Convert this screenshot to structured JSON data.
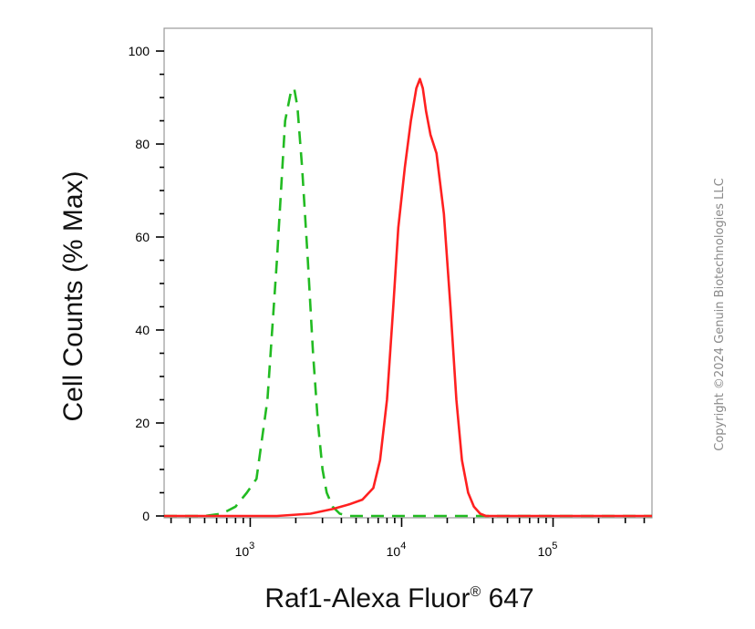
{
  "chart_data": {
    "type": "line",
    "x_scale": "log",
    "xlim": [
      270,
      450000
    ],
    "ylim": [
      0,
      105
    ],
    "ylabel": "Cell Counts (% Max)",
    "xlabel": "Raf1-Alexa Fluor",
    "xlabel_superscript": "®",
    "xlabel_suffix": " 647",
    "yticks": [
      0,
      20,
      40,
      60,
      80,
      100
    ],
    "yticks_labels": [
      "0",
      "20",
      "40",
      "60",
      "80",
      "100"
    ],
    "xticks": [
      {
        "value": 1000,
        "base": "10",
        "exp": "3"
      },
      {
        "value": 10000,
        "base": "10",
        "exp": "4"
      },
      {
        "value": 100000,
        "base": "10",
        "exp": "5"
      }
    ],
    "grid": false,
    "series": [
      {
        "color": "#22bb22",
        "style": "dashed",
        "x": [
          270,
          500,
          650,
          800,
          950,
          1100,
          1300,
          1500,
          1700,
          1850,
          1950,
          2050,
          2200,
          2400,
          2600,
          2800,
          3000,
          3200,
          3500,
          3900,
          4500,
          6000,
          10000,
          50000,
          450000
        ],
        "y": [
          0,
          0,
          0.5,
          2,
          5,
          8,
          25,
          55,
          85,
          91,
          92,
          88,
          75,
          55,
          35,
          20,
          10,
          5,
          2,
          0.5,
          0,
          0,
          0,
          0,
          0
        ]
      },
      {
        "color": "#ff2020",
        "style": "solid",
        "x": [
          270,
          1500,
          2500,
          3500,
          4500,
          5500,
          6500,
          7200,
          8000,
          8800,
          9500,
          10500,
          11500,
          12500,
          13200,
          13800,
          14500,
          15500,
          17000,
          19000,
          21000,
          23000,
          25000,
          27500,
          30000,
          33000,
          36000,
          45000,
          100000,
          450000
        ],
        "y": [
          0,
          0,
          0.5,
          1.5,
          2.5,
          3.5,
          6,
          12,
          25,
          45,
          62,
          75,
          85,
          92,
          94,
          92,
          87,
          82,
          78,
          65,
          45,
          25,
          12,
          5,
          2,
          0.5,
          0,
          0,
          0,
          0
        ]
      }
    ]
  },
  "watermark": "Copyright ©2024 Genuin Biotechnologies LLC"
}
